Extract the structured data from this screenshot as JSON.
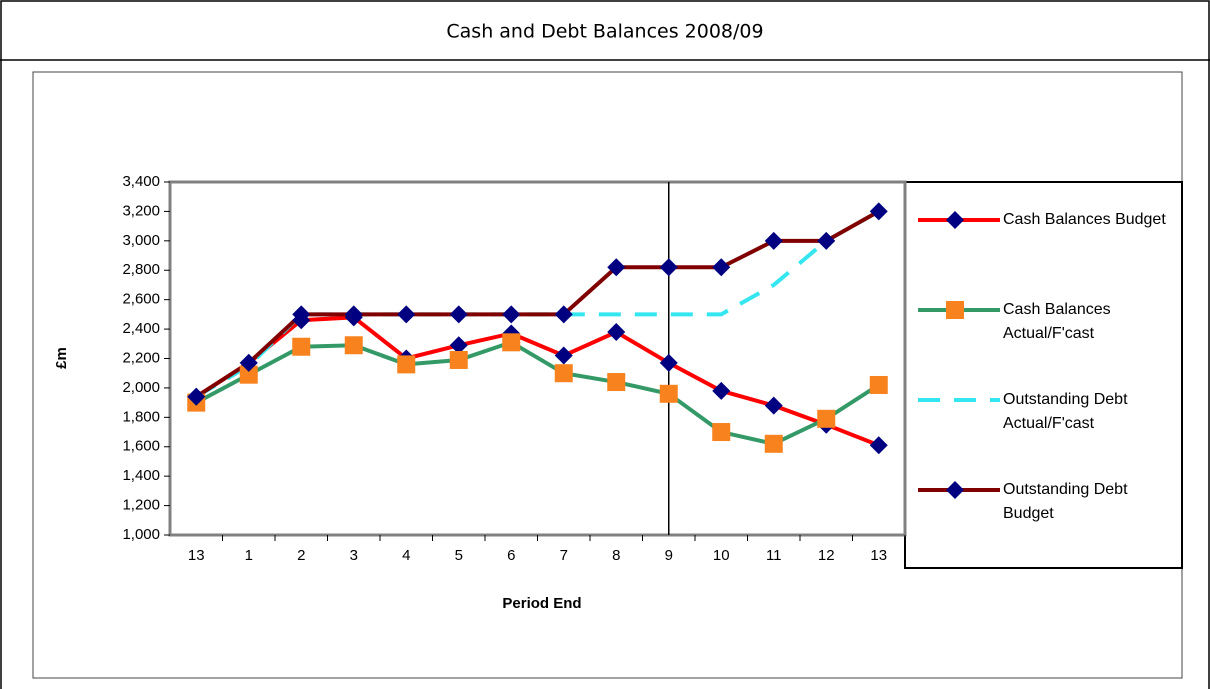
{
  "chart_data": {
    "type": "line",
    "title": "Cash and Debt Balances 2008/09",
    "x_label": "Period End",
    "y_label": "£m",
    "categories": [
      "13",
      "1",
      "2",
      "3",
      "4",
      "5",
      "6",
      "7",
      "8",
      "9",
      "10",
      "11",
      "12",
      "13"
    ],
    "series": [
      {
        "name": "Cash Balances Budget",
        "color": "#ff0000",
        "marker": "diamond",
        "marker_color": "#000080",
        "dash": false,
        "values": [
          1940,
          2170,
          2460,
          2480,
          2200,
          2290,
          2370,
          2220,
          2380,
          2170,
          1980,
          1880,
          1750,
          1610
        ]
      },
      {
        "name": "Cash Balances Actual/F'cast",
        "color": "#339966",
        "marker": "square",
        "marker_color": "#f7821e",
        "dash": false,
        "values": [
          1900,
          2090,
          2280,
          2290,
          2160,
          2190,
          2310,
          2100,
          2040,
          1960,
          1700,
          1620,
          1790,
          2020
        ]
      },
      {
        "name": "Outstanding Debt Actual/F'cast",
        "color": "#33e6f0",
        "marker": "none",
        "marker_color": "#33e6f0",
        "dash": true,
        "values": [
          1940,
          2150,
          2500,
          2500,
          2500,
          2500,
          2500,
          2500,
          2500,
          2500,
          2500,
          2700,
          3000,
          3200
        ]
      },
      {
        "name": "Outstanding Debt Budget",
        "color": "#800000",
        "marker": "diamond",
        "marker_color": "#000080",
        "dash": false,
        "values": [
          1940,
          2170,
          2500,
          2500,
          2500,
          2500,
          2500,
          2500,
          2820,
          2820,
          2820,
          3000,
          3000,
          3200
        ]
      }
    ],
    "reference_line_category_index": 9,
    "ylim": [
      1000,
      3400
    ],
    "yticks": [
      {
        "value": 1000,
        "label": "1,000"
      },
      {
        "value": 1200,
        "label": "1,200"
      },
      {
        "value": 1400,
        "label": "1,400"
      },
      {
        "value": 1600,
        "label": "1,600"
      },
      {
        "value": 1800,
        "label": "1,800"
      },
      {
        "value": 2000,
        "label": "2,000"
      },
      {
        "value": 2200,
        "label": "2,200"
      },
      {
        "value": 2400,
        "label": "2,400"
      },
      {
        "value": 2600,
        "label": "2,600"
      },
      {
        "value": 2800,
        "label": "2,800"
      },
      {
        "value": 3000,
        "label": "3,000"
      },
      {
        "value": 3200,
        "label": "3,200"
      },
      {
        "value": 3400,
        "label": "3,400"
      }
    ],
    "legend": "right"
  }
}
